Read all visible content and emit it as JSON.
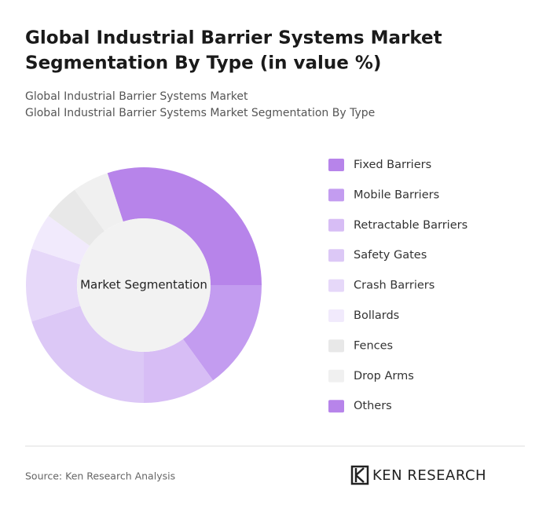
{
  "chart_data": {
    "type": "donut",
    "title": [
      "Global Industrial Barrier Systems Market",
      "Segmentation By Type (in value %)"
    ],
    "subtitle": [
      "Global Industrial Barrier Systems Market",
      "Global Industrial Barrier Systems Market Segmentation By Type"
    ],
    "center_label": "Market Segmentation",
    "categories": [
      "Fixed Barriers",
      "Mobile Barriers",
      "Retractable Barriers",
      "Safety Gates",
      "Crash Barriers",
      "Bollards",
      "Fences",
      "Drop Arms",
      "Others"
    ],
    "values": [
      30,
      15,
      10,
      20,
      10,
      5,
      5,
      5,
      0
    ],
    "colors": [
      "#b784ea",
      "#c39cf0",
      "#d7bdf5",
      "#dcc8f6",
      "#e6d8f9",
      "#f1eafc",
      "#e8e8e8",
      "#f0f0f0",
      "#b784ea"
    ],
    "source": "Source: Ken Research Analysis",
    "logo": "KEN RESEARCH"
  }
}
